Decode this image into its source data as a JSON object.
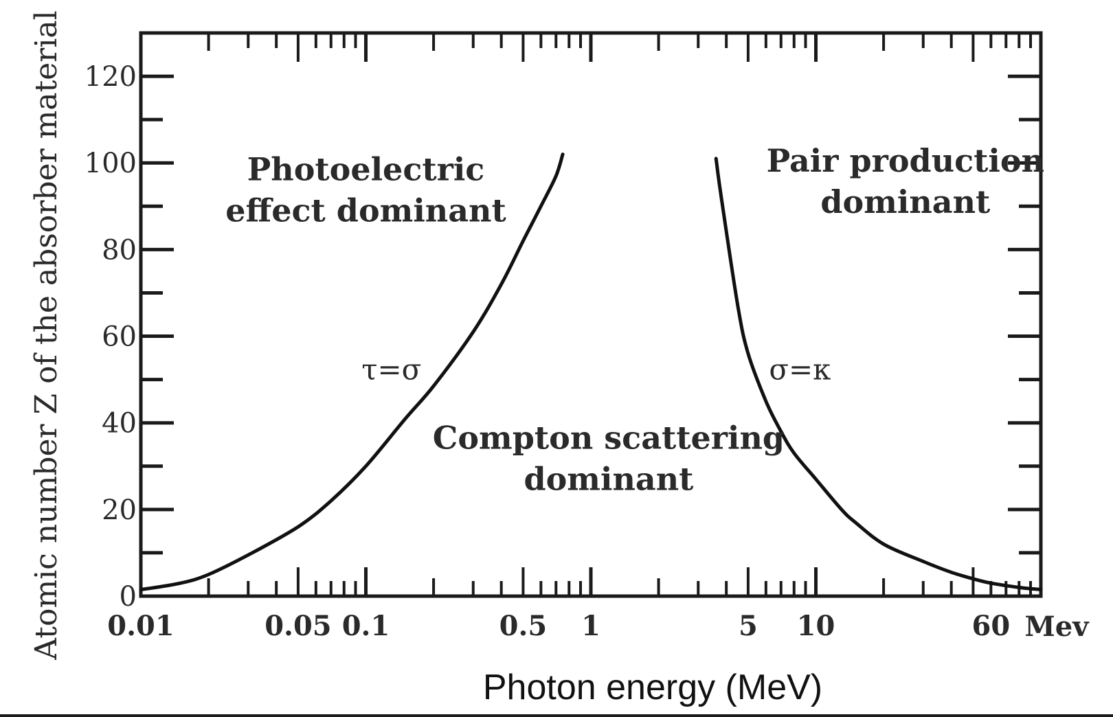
{
  "chart_data": {
    "type": "line",
    "x_scale": "log",
    "xlim": [
      0.01,
      100
    ],
    "ylim": [
      0,
      130
    ],
    "xlabel": "Photon energy (MeV)",
    "ylabel": "Atomic number Z of the absorber material",
    "x_unit_label": "Mev",
    "x_tick_labels": [
      {
        "value": 0.01,
        "label": "0.01"
      },
      {
        "value": 0.05,
        "label": "0.05"
      },
      {
        "value": 0.1,
        "label": "0.1"
      },
      {
        "value": 0.5,
        "label": "0.5"
      },
      {
        "value": 1,
        "label": "1"
      },
      {
        "value": 5,
        "label": "5"
      },
      {
        "value": 10,
        "label": "10"
      },
      {
        "value": 60,
        "label": "60"
      }
    ],
    "y_tick_labels": [
      {
        "value": 0,
        "label": "0"
      },
      {
        "value": 20,
        "label": "20"
      },
      {
        "value": 40,
        "label": "40"
      },
      {
        "value": 60,
        "label": "60"
      },
      {
        "value": 80,
        "label": "80"
      },
      {
        "value": 100,
        "label": "100"
      },
      {
        "value": 120,
        "label": "120"
      }
    ],
    "series": [
      {
        "name": "τ=σ",
        "x": [
          0.01,
          0.015,
          0.02,
          0.03,
          0.05,
          0.07,
          0.1,
          0.15,
          0.2,
          0.3,
          0.4,
          0.5,
          0.6,
          0.7,
          0.75
        ],
        "y": [
          1.5,
          3,
          5,
          9.5,
          16,
          22,
          30,
          41,
          48.5,
          61,
          72,
          82,
          90,
          97,
          102
        ]
      },
      {
        "name": "σ=κ",
        "x": [
          3.6,
          3.8,
          4.5,
          5,
          6,
          7,
          8,
          10,
          13,
          15,
          20,
          30,
          40,
          50,
          60,
          80,
          100
        ],
        "y": [
          101,
          92,
          67,
          56,
          45,
          38,
          33,
          27,
          20,
          17,
          12,
          8,
          5.5,
          4,
          3,
          2,
          1.5
        ]
      }
    ],
    "regions": [
      {
        "lines": [
          "Photoelectric",
          "effect dominant"
        ],
        "x": 0.1,
        "y": 96
      },
      {
        "lines": [
          "Compton scattering",
          "dominant"
        ],
        "x": 1.2,
        "y": 34
      },
      {
        "lines": [
          "Pair production",
          "dominant"
        ],
        "x": 25,
        "y": 98
      }
    ],
    "curve_labels": [
      {
        "text": "τ=σ",
        "x": 0.13,
        "y": 50
      },
      {
        "text": "σ=κ",
        "x": 8.5,
        "y": 50
      }
    ]
  }
}
